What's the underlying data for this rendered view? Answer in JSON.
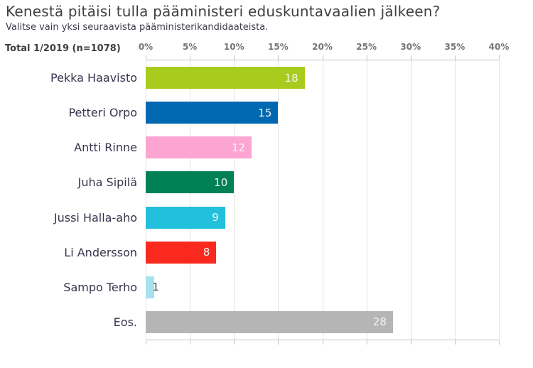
{
  "title": "Kenestä pitäisi tulla pääministeri eduskuntavaalien jälkeen?",
  "subtitle": "Valitse vain yksi seuraavista pääministerikandidaateista.",
  "total_label": "Total 1/2019 (n=1078)",
  "chart_data": {
    "type": "bar",
    "orientation": "horizontal",
    "title": "Kenestä pitäisi tulla pääministeri eduskuntavaalien jälkeen?",
    "subtitle": "Valitse vain yksi seuraavista pääministerikandidaateista.",
    "sample_note": "Total 1/2019 (n=1078)",
    "categories": [
      "Pekka Haavisto",
      "Petteri Orpo",
      "Antti Rinne",
      "Juha Sipilä",
      "Jussi Halla-aho",
      "Li Andersson",
      "Sampo Terho",
      "Eos."
    ],
    "values": [
      18,
      15,
      12,
      10,
      9,
      8,
      1,
      28
    ],
    "bar_colors": [
      "#A8CC1E",
      "#0068B0",
      "#FCA5D2",
      "#008155",
      "#23C0DE",
      "#F92A1D",
      "#A6E1EE",
      "#B5B5B5"
    ],
    "x_ticks": [
      "0%",
      "5%",
      "10%",
      "15%",
      "20%",
      "25%",
      "30%",
      "35%",
      "40%"
    ],
    "x_tick_values": [
      0,
      5,
      10,
      15,
      20,
      25,
      30,
      35,
      40
    ],
    "xlim": [
      0,
      40
    ],
    "grid": true,
    "value_label_style": "inside bar end in white; values below 2 shown outside in dark gray",
    "colors": {
      "title_text": "#3f3f3f",
      "category_text": "#35354d",
      "axis_tick_text": "#757575",
      "gridline": "#e3e3e3",
      "axis_line": "#c0c0c0",
      "value_label_inside": "#f5f5f5",
      "value_label_outside": "#4a4a4a",
      "background": "#ffffff"
    }
  }
}
